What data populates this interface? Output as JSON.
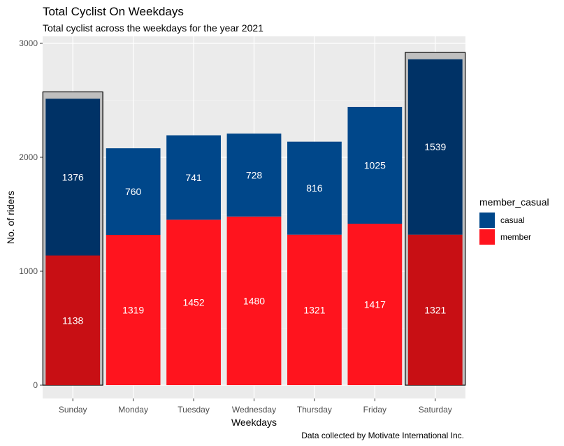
{
  "chart_data": {
    "type": "bar",
    "stacked": true,
    "title": "Total Cyclist On Weekdays",
    "subtitle": "Total cyclist across the weekdays for the year 2021",
    "caption": "Data collected by Motivate International Inc.",
    "xlabel": "Weekdays",
    "ylabel": "No. of riders",
    "ylim": [
      0,
      3000
    ],
    "yticks": [
      0,
      1000,
      2000,
      3000
    ],
    "grid": true,
    "legend_title": "member_casual",
    "legend_position": "right",
    "categories": [
      "Sunday",
      "Monday",
      "Tuesday",
      "Wednesday",
      "Thursday",
      "Friday",
      "Saturday"
    ],
    "series": [
      {
        "name": "member",
        "values": [
          1138,
          1319,
          1452,
          1480,
          1321,
          1417,
          1321
        ],
        "color": "#ff141e",
        "highlight_color": "#c80f14"
      },
      {
        "name": "casual",
        "values": [
          1376,
          760,
          741,
          728,
          816,
          1025,
          1539
        ],
        "color": "#00478a",
        "highlight_color": "#003266"
      }
    ],
    "highlighted_categories": [
      "Sunday",
      "Saturday"
    ]
  }
}
